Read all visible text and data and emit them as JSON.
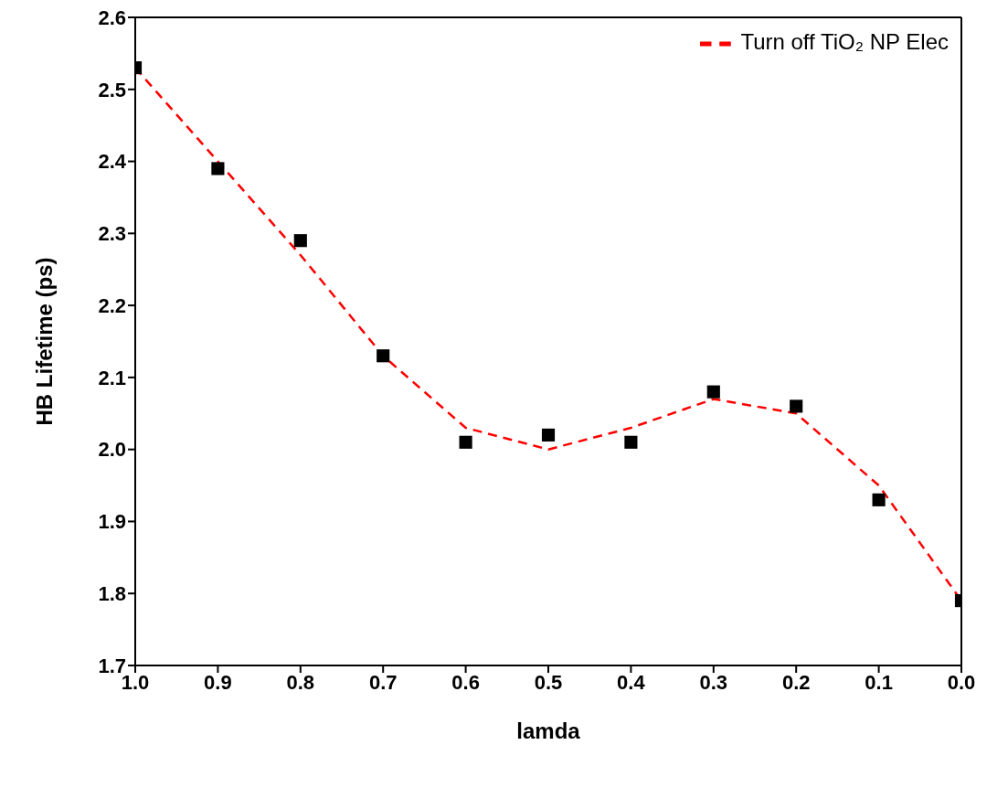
{
  "chart_data": {
    "type": "scatter",
    "xlabel": "lamda",
    "ylabel": "HB Lifetime (ps)",
    "x": [
      1.0,
      0.9,
      0.8,
      0.7,
      0.6,
      0.5,
      0.4,
      0.3,
      0.2,
      0.1,
      0.0
    ],
    "xlim": [
      1.0,
      0.0
    ],
    "xticks": [
      {
        "value": 1.0,
        "label": "1.0"
      },
      0.9,
      0.8,
      0.7,
      0.6,
      0.5,
      0.4,
      0.3,
      0.2,
      0.1,
      {
        "value": 0,
        "label": "0.0"
      }
    ],
    "ylim": [
      1.7,
      2.6
    ],
    "yticks": [
      1.7,
      1.8,
      1.9,
      {
        "value": 2.0,
        "label": "2.0"
      },
      2.1,
      2.2,
      2.3,
      2.4,
      2.5,
      2.6
    ],
    "grid": false,
    "legend": "top right",
    "series": [
      {
        "type": "scatter",
        "color": "#000000",
        "marker": "square",
        "values": [
          2.53,
          2.39,
          2.29,
          2.13,
          2.01,
          2.02,
          2.01,
          2.08,
          2.06,
          1.93,
          1.79
        ]
      },
      {
        "type": "line",
        "name": "Turn off TiO₂ NP Elec",
        "color": "#ff0000",
        "line_style": "dashed",
        "marker": "none",
        "values": [
          2.53,
          2.4,
          2.27,
          2.13,
          2.03,
          2.0,
          2.03,
          2.07,
          2.05,
          1.95,
          1.79
        ]
      }
    ]
  }
}
